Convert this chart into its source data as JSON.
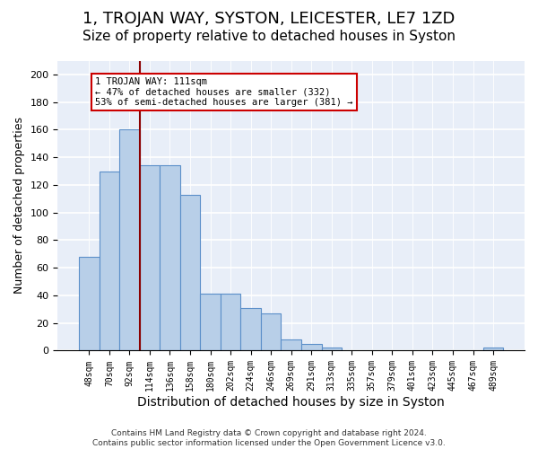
{
  "title": "1, TROJAN WAY, SYSTON, LEICESTER, LE7 1ZD",
  "subtitle": "Size of property relative to detached houses in Syston",
  "xlabel": "Distribution of detached houses by size in Syston",
  "ylabel": "Number of detached properties",
  "bar_labels": [
    "48sqm",
    "70sqm",
    "92sqm",
    "114sqm",
    "136sqm",
    "158sqm",
    "180sqm",
    "202sqm",
    "224sqm",
    "246sqm",
    "269sqm",
    "291sqm",
    "313sqm",
    "335sqm",
    "357sqm",
    "379sqm",
    "401sqm",
    "423sqm",
    "445sqm",
    "467sqm",
    "489sqm"
  ],
  "bar_values": [
    68,
    130,
    160,
    134,
    134,
    113,
    41,
    41,
    31,
    27,
    8,
    5,
    2,
    0,
    0,
    0,
    0,
    0,
    0,
    0,
    2
  ],
  "bar_color": "#b8cfe8",
  "bar_edge_color": "#5b8fc9",
  "property_line_x": 2.5,
  "property_line_color": "#8b0000",
  "annotation_text": "1 TROJAN WAY: 111sqm\n← 47% of detached houses are smaller (332)\n53% of semi-detached houses are larger (381) →",
  "annotation_box_color": "white",
  "annotation_box_edge_color": "#cc0000",
  "ylim": [
    0,
    210
  ],
  "yticks": [
    0,
    20,
    40,
    60,
    80,
    100,
    120,
    140,
    160,
    180,
    200
  ],
  "bg_color": "#e8eef8",
  "footer_line1": "Contains HM Land Registry data © Crown copyright and database right 2024.",
  "footer_line2": "Contains public sector information licensed under the Open Government Licence v3.0.",
  "title_fontsize": 13,
  "subtitle_fontsize": 11,
  "xlabel_fontsize": 10,
  "ylabel_fontsize": 9
}
